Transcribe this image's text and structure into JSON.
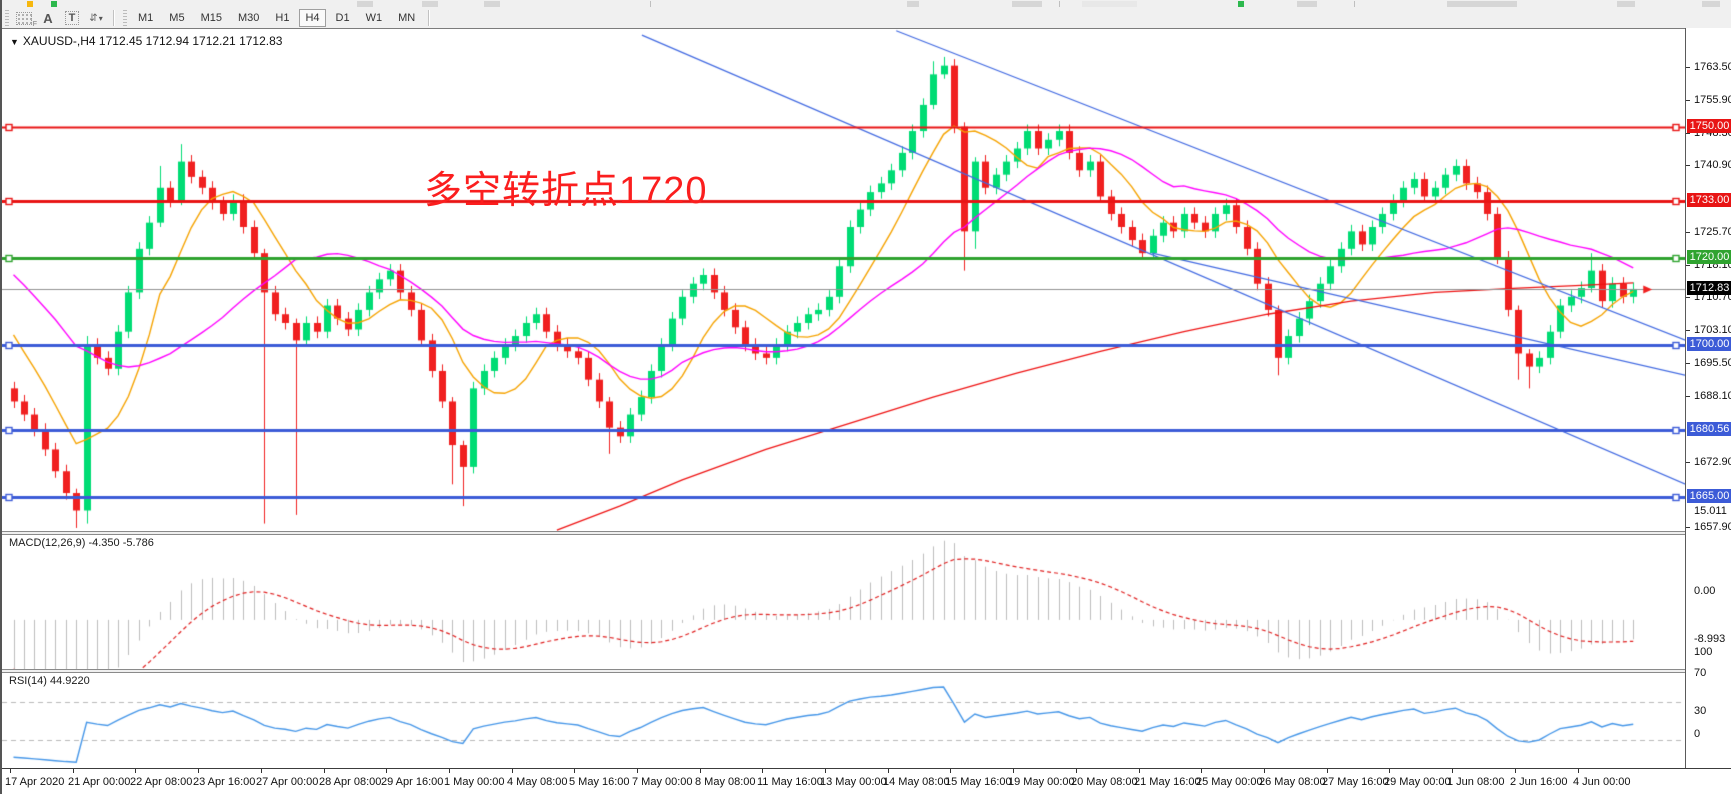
{
  "toolbar": {
    "text_tool_a": "A",
    "text_tool_t": "T",
    "indicator_glyph": "⇵",
    "caret": "▾",
    "timeframes": [
      "M1",
      "M5",
      "M15",
      "M30",
      "H1",
      "H4",
      "D1",
      "W1",
      "MN"
    ],
    "active_timeframe": "H4"
  },
  "chart_header": {
    "dropdown_icon": "▼",
    "title": "XAUUSD-,H4  1712.45 1712.94 1712.21 1712.83"
  },
  "annotation": {
    "text": "多空转折点1720",
    "color": "#fb1e1e"
  },
  "colors": {
    "bull": "#00dc74",
    "bear": "#f02020",
    "wick_bull": "#00c968",
    "wick_bear": "#e01818",
    "ma_fast": "#f5a300",
    "ma_mid": "#ff00ff",
    "ma_slow": "#ee1111",
    "trendline": "#4169e1",
    "current_price_line": "#909090",
    "histogram": "#bcbcbc",
    "macd_signal": "#e02020",
    "rsi_line": "#4596e8",
    "badge_red": "#e81414",
    "badge_green": "#2fa32f",
    "badge_blue": "#3c5bd7",
    "badge_black": "#000000"
  },
  "chart_data": [
    {
      "type": "candlestick",
      "symbol": "XAUUSD-",
      "timeframe": "H4",
      "ohlc_display": [
        1712.45,
        1712.94,
        1712.21,
        1712.83
      ],
      "current_price": 1712.83,
      "ylim": [
        1657.3,
        1772.4
      ],
      "bars_per_label": 6,
      "x_labels": [
        "17 Apr 2020",
        "21 Apr 00:00",
        "22 Apr 08:00",
        "23 Apr 16:00",
        "27 Apr 00:00",
        "28 Apr 08:00",
        "29 Apr 16:00",
        "1 May 00:00",
        "4 May 08:00",
        "5 May 16:00",
        "7 May 00:00",
        "8 May 08:00",
        "11 May 16:00",
        "13 May 00:00",
        "14 May 08:00",
        "15 May 16:00",
        "19 May 00:00",
        "20 May 08:00",
        "21 May 16:00",
        "25 May 00:00",
        "26 May 08:00",
        "27 May 16:00",
        "29 May 00:00",
        "1 Jun 08:00",
        "2 Jun 16:00",
        "4 Jun 00:00"
      ],
      "open_equals_previous_close": true,
      "first_open": 1690,
      "pre_closes": [
        1748,
        1746,
        1747,
        1744,
        1741,
        1743,
        1740,
        1737,
        1739,
        1735,
        1733,
        1735,
        1731,
        1728,
        1730,
        1726,
        1723,
        1725,
        1721,
        1718,
        1720,
        1716,
        1713,
        1715,
        1711,
        1708,
        1706,
        1702,
        1697,
        1692
      ],
      "closes": [
        1687,
        1684,
        1680.5,
        1676,
        1671,
        1666,
        1662,
        1700,
        1697,
        1694.5,
        1703,
        1712,
        1722,
        1728,
        1736,
        1733,
        1742,
        1738.5,
        1736,
        1732.5,
        1730,
        1733,
        1727,
        1721,
        1712,
        1707,
        1705,
        1701,
        1705,
        1703,
        1709,
        1706,
        1703.5,
        1708,
        1712,
        1715,
        1717,
        1712,
        1708,
        1701,
        1694,
        1687,
        1677,
        1672,
        1690,
        1694,
        1697,
        1700,
        1702,
        1705,
        1707,
        1703,
        1700,
        1698.5,
        1697,
        1692,
        1687,
        1681,
        1679,
        1684,
        1688,
        1694,
        1700,
        1706,
        1711,
        1714,
        1716,
        1712,
        1708,
        1704,
        1700,
        1698,
        1697,
        1700,
        1703,
        1705,
        1707,
        1708,
        1711,
        1718,
        1727,
        1731,
        1735,
        1737,
        1740,
        1744,
        1749,
        1755,
        1762,
        1764,
        1750,
        1726,
        1742,
        1736,
        1739,
        1742,
        1745,
        1749,
        1745,
        1747,
        1749,
        1744,
        1740,
        1742,
        1734,
        1730,
        1727,
        1724,
        1721,
        1725,
        1728,
        1726,
        1730,
        1728,
        1726,
        1730,
        1732,
        1727,
        1722,
        1714,
        1708,
        1697,
        1702,
        1706,
        1710,
        1714,
        1718,
        1722,
        1726,
        1723,
        1727,
        1730,
        1733,
        1736,
        1738,
        1734,
        1736,
        1739,
        1741,
        1737,
        1735,
        1730,
        1720,
        1708,
        1698,
        1695,
        1697,
        1703,
        1709,
        1711,
        1713,
        1717,
        1710,
        1714,
        1711,
        1712.8
      ],
      "default_wick": 1.5,
      "wick_overrides": {
        "6": [
          1,
          4
        ],
        "7": [
          2,
          3
        ],
        "14": [
          5,
          1
        ],
        "16": [
          4,
          1
        ],
        "24": [
          1,
          53
        ],
        "27": [
          1,
          40
        ],
        "42": [
          1,
          9
        ],
        "43": [
          1,
          9
        ],
        "57": [
          1,
          6
        ],
        "88": [
          3,
          1
        ],
        "89": [
          2,
          1
        ],
        "91": [
          1,
          9
        ],
        "92": [
          1,
          4
        ],
        "121": [
          1,
          4
        ],
        "144": [
          1,
          6
        ],
        "145": [
          1,
          5
        ],
        "151": [
          4,
          1
        ]
      },
      "moving_averages": [
        {
          "name": "ma-fast-orange",
          "period": 8,
          "color_key": "ma_fast"
        },
        {
          "name": "ma-mid-magenta",
          "period": 21,
          "color_key": "ma_mid"
        }
      ],
      "slow_ma_points": [
        [
          52,
          1657.5
        ],
        [
          58,
          1663
        ],
        [
          64,
          1669
        ],
        [
          72,
          1676
        ],
        [
          80,
          1682
        ],
        [
          88,
          1688
        ],
        [
          96,
          1693.5
        ],
        [
          104,
          1698.5
        ],
        [
          112,
          1703
        ],
        [
          120,
          1707
        ],
        [
          128,
          1710
        ],
        [
          136,
          1712
        ],
        [
          144,
          1713
        ],
        [
          150,
          1713.6
        ],
        [
          155,
          1714.2
        ]
      ],
      "trendlines": [
        {
          "x1": 0.38,
          "p1": 1771,
          "x2": 1.0,
          "p2": 1668
        },
        {
          "x1": 0.531,
          "p1": 1772,
          "x2": 1.0,
          "p2": 1701
        },
        {
          "x1": 0.683,
          "p1": 1721,
          "x2": 1.0,
          "p2": 1693
        }
      ],
      "hlines": [
        {
          "value": 1750.0,
          "color_key": "badge_red",
          "width": 2
        },
        {
          "value": 1733.0,
          "color_key": "badge_red",
          "width": 3
        },
        {
          "value": 1720.0,
          "color_key": "badge_green",
          "width": 3
        },
        {
          "value": 1700.0,
          "color_key": "badge_blue",
          "width": 3
        },
        {
          "value": 1680.56,
          "color_key": "badge_blue",
          "width": 3
        },
        {
          "value": 1665.0,
          "color_key": "badge_blue",
          "width": 3
        }
      ],
      "price_labels": [
        {
          "text": "1763.50",
          "value": 1763.5
        },
        {
          "text": "1755.90",
          "value": 1755.9
        },
        {
          "text": "1748.30",
          "value": 1748.3
        },
        {
          "text": "1740.90",
          "value": 1740.9
        },
        {
          "text": "1725.70",
          "value": 1725.7
        },
        {
          "text": "1718.10",
          "value": 1718.1
        },
        {
          "text": "1710.70",
          "value": 1710.7
        },
        {
          "text": "1703.10",
          "value": 1703.1
        },
        {
          "text": "1695.50",
          "value": 1695.5
        },
        {
          "text": "1688.10",
          "value": 1688.1
        },
        {
          "text": "1672.90",
          "value": 1672.9
        },
        {
          "text": "1657.90",
          "value": 1657.9
        }
      ],
      "price_badges": [
        {
          "text": "1750.00",
          "value": 1750.0,
          "bg_key": "badge_red"
        },
        {
          "text": "1733.00",
          "value": 1733.0,
          "bg_key": "badge_red"
        },
        {
          "text": "1720.00",
          "value": 1720.0,
          "bg_key": "badge_green"
        },
        {
          "text": "1712.83",
          "value": 1712.83,
          "bg_key": "badge_black"
        },
        {
          "text": "1700.00",
          "value": 1700.0,
          "bg_key": "badge_blue"
        },
        {
          "text": "1680.56",
          "value": 1680.56,
          "bg_key": "badge_blue"
        },
        {
          "text": "1665.00",
          "value": 1665.0,
          "bg_key": "badge_blue"
        }
      ]
    },
    {
      "type": "bar",
      "name": "MACD",
      "label": "MACD(12,26,9) -4.350 -5.786",
      "fast": 12,
      "slow": 26,
      "signal": 9,
      "displayed_values": [
        -4.35,
        -5.786
      ],
      "ylim": [
        -9.2,
        15.9
      ],
      "axis_labels": [
        {
          "text": "15.011",
          "value": 15.011
        },
        {
          "text": "0.00",
          "value": 0
        },
        {
          "text": "-8.993",
          "value": -8.993
        }
      ]
    },
    {
      "type": "line",
      "name": "RSI",
      "label": "RSI(14) 44.9220",
      "period": 14,
      "displayed_value": 44.922,
      "ylim": [
        0,
        100
      ],
      "levels": [
        70,
        30
      ],
      "axis_labels": [
        {
          "text": "100",
          "value": 100
        },
        {
          "text": "70",
          "value": 70
        },
        {
          "text": "30",
          "value": 30
        },
        {
          "text": "0",
          "value": 0
        }
      ]
    }
  ]
}
